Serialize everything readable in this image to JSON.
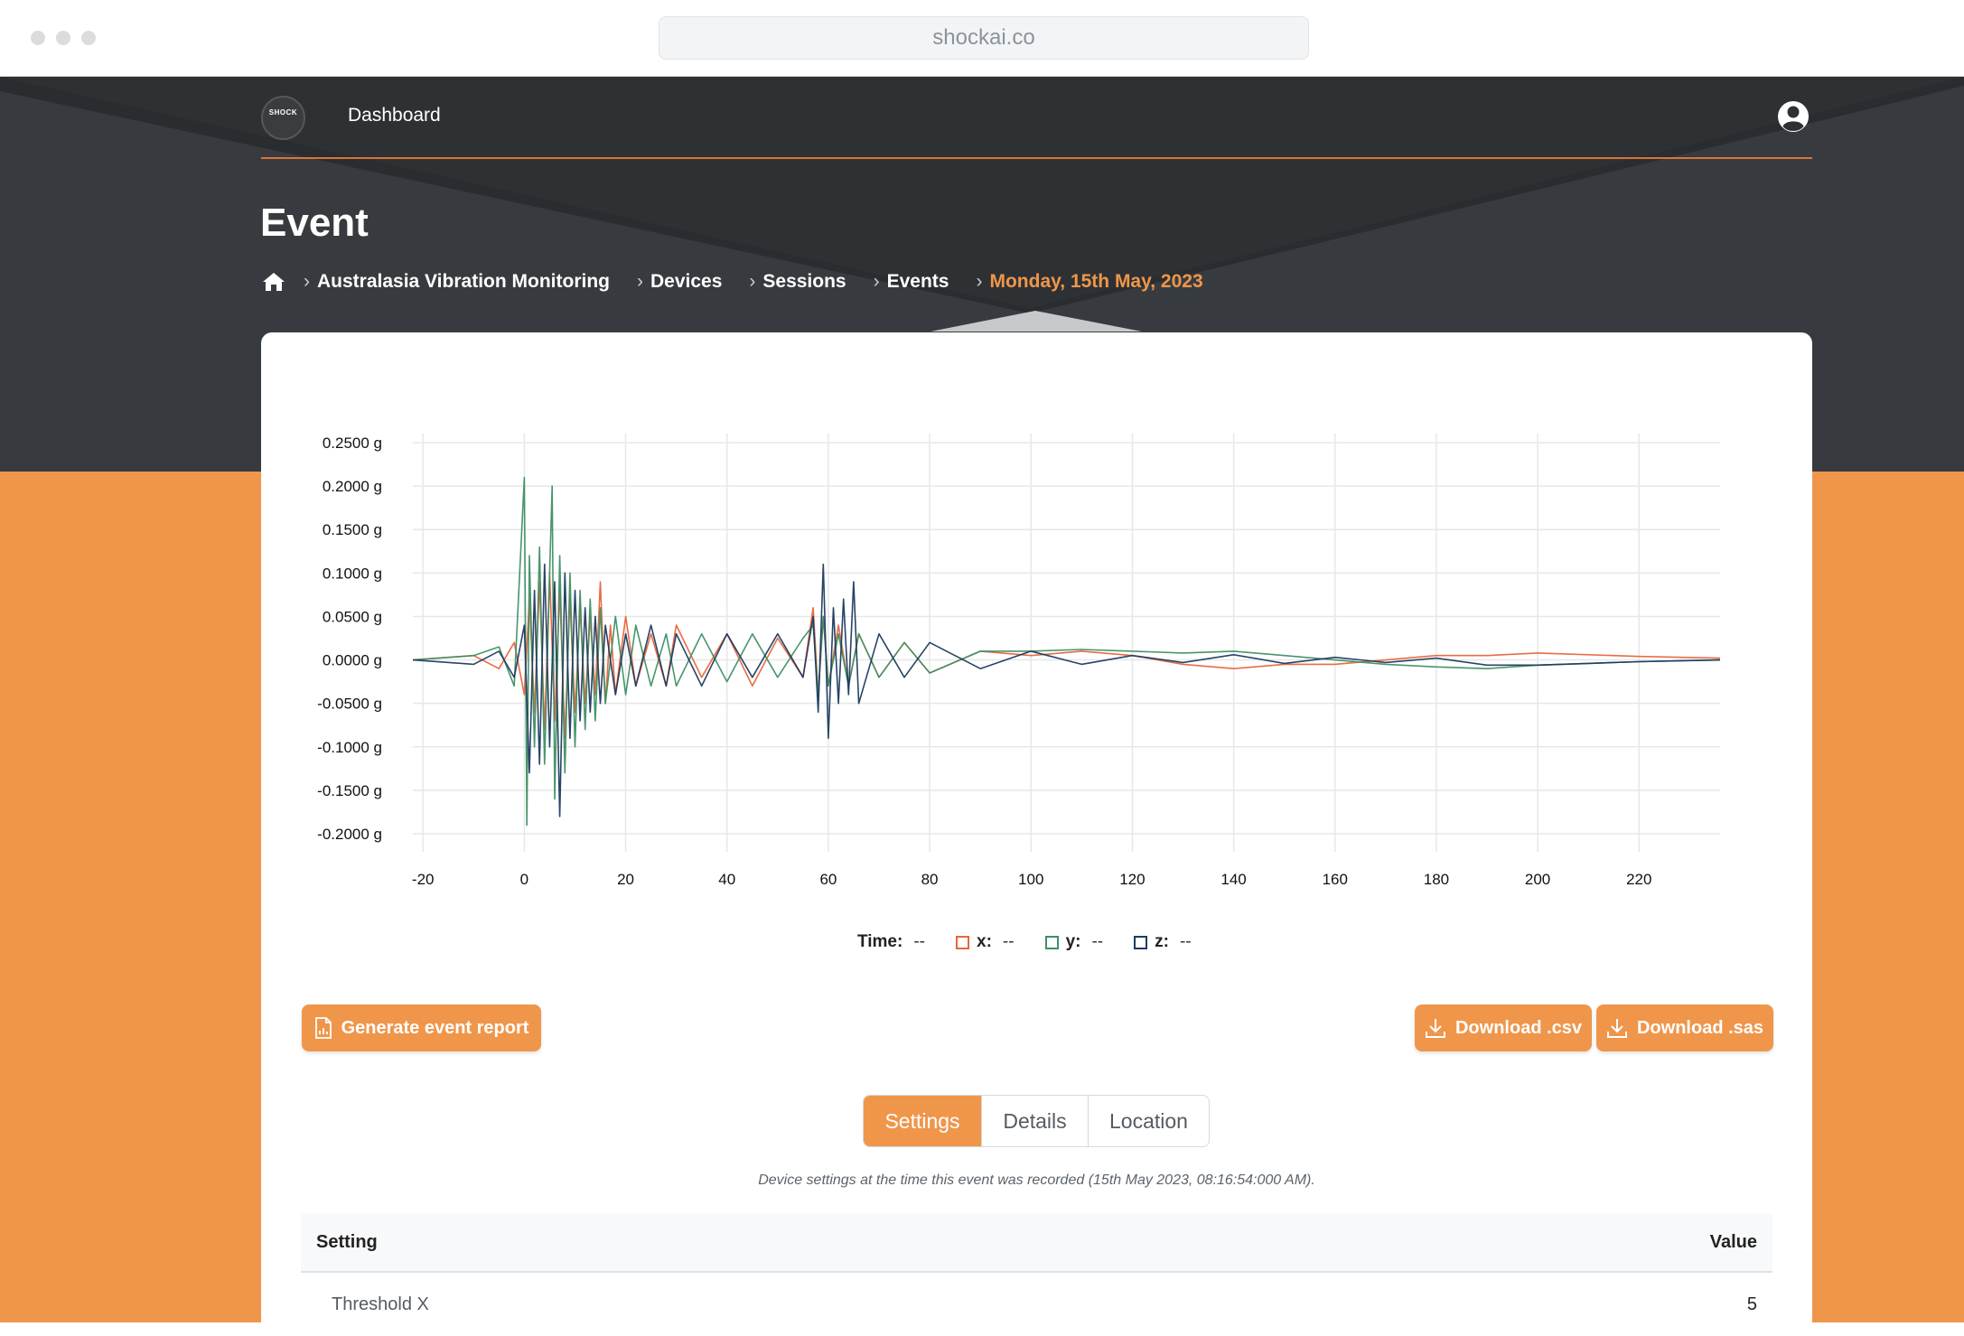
{
  "browser": {
    "url": "shockai.co"
  },
  "header": {
    "logo_text": "SHOCK",
    "nav_label": "Dashboard"
  },
  "page": {
    "title": "Event",
    "breadcrumbs": [
      "Australasia Vibration Monitoring",
      "Devices",
      "Sessions",
      "Events",
      "Monday, 15th May, 2023"
    ]
  },
  "colors": {
    "dark_bg": "#2e3134",
    "accent": "#ef964b",
    "series_x": "#e8643c",
    "series_y": "#3e8f63",
    "series_z": "#1e3a5f"
  },
  "legend": {
    "time_label": "Time:",
    "time_value": "--",
    "x_label": "x:",
    "x_value": "--",
    "y_label": "y:",
    "y_value": "--",
    "z_label": "z:",
    "z_value": "--"
  },
  "actions": {
    "report_label": "Generate event report",
    "csv_label": "Download .csv",
    "sas_label": "Download .sas"
  },
  "tabs": [
    {
      "label": "Settings",
      "active": true
    },
    {
      "label": "Details",
      "active": false
    },
    {
      "label": "Location",
      "active": false
    }
  ],
  "settings": {
    "caption": "Device settings at the time this event was recorded (15th May 2023, 08:16:54:000 AM).",
    "col_setting": "Setting",
    "col_value": "Value",
    "rows": [
      {
        "name": "Threshold X",
        "value": "5"
      }
    ]
  },
  "chart_data": {
    "type": "line",
    "xlim": [
      -22,
      236
    ],
    "ylim": [
      -0.2,
      0.25
    ],
    "x_ticks": [
      -20,
      0,
      20,
      40,
      60,
      80,
      100,
      120,
      140,
      160,
      180,
      200,
      220
    ],
    "y_ticks": [
      0.25,
      0.2,
      0.15,
      0.1,
      0.05,
      0,
      -0.05,
      -0.1,
      -0.15,
      -0.2
    ],
    "y_tick_labels": [
      "0.2500 g",
      "0.2000 g",
      "0.1500 g",
      "0.1000 g",
      "0.0500 g",
      "0.0000 g",
      "-0.0500 g",
      "-0.1000 g",
      "-0.1500 g",
      "-0.2000 g"
    ],
    "grid": true,
    "series": [
      {
        "key": "x",
        "color": "#e8643c",
        "x": [
          -22,
          -10,
          -5,
          -2,
          0,
          1,
          2,
          3,
          4,
          5,
          6,
          7,
          8,
          9,
          10,
          11,
          12,
          13,
          14,
          15,
          16,
          17,
          18,
          20,
          22,
          25,
          28,
          30,
          35,
          40,
          45,
          50,
          55,
          57,
          58,
          59,
          60,
          62,
          64,
          66,
          70,
          75,
          80,
          90,
          100,
          110,
          120,
          130,
          140,
          150,
          160,
          170,
          180,
          190,
          200,
          210,
          220,
          236
        ],
        "y": [
          0,
          0.005,
          -0.01,
          0.02,
          -0.04,
          0.07,
          -0.06,
          0.09,
          -0.08,
          0.1,
          -0.07,
          0.08,
          -0.09,
          0.07,
          -0.06,
          0.06,
          -0.05,
          0.05,
          -0.04,
          0.09,
          -0.05,
          0.04,
          -0.04,
          0.05,
          -0.03,
          0.03,
          -0.03,
          0.04,
          -0.02,
          0.03,
          -0.03,
          0.025,
          -0.02,
          0.06,
          -0.04,
          0.05,
          -0.03,
          0.04,
          -0.03,
          0.03,
          -0.02,
          0.02,
          -0.015,
          0.01,
          0.005,
          0.01,
          0.005,
          -0.005,
          -0.01,
          -0.005,
          -0.005,
          0,
          0.005,
          0.005,
          0.008,
          0.006,
          0.004,
          0.002
        ]
      },
      {
        "key": "y",
        "color": "#3e8f63",
        "x": [
          -22,
          -10,
          -5,
          -2,
          0,
          0.5,
          1,
          2,
          3,
          4,
          5,
          5.5,
          6,
          7,
          8,
          9,
          10,
          11,
          12,
          13,
          14,
          15,
          16,
          18,
          20,
          22,
          25,
          28,
          30,
          35,
          40,
          45,
          50,
          55,
          57,
          58,
          59,
          60,
          62,
          64,
          66,
          70,
          75,
          80,
          90,
          100,
          110,
          120,
          130,
          140,
          150,
          160,
          170,
          180,
          190,
          200,
          210,
          220,
          236
        ],
        "y": [
          0,
          0.005,
          0.015,
          -0.03,
          0.21,
          -0.19,
          0.12,
          -0.1,
          0.13,
          -0.12,
          0.1,
          0.2,
          -0.16,
          0.12,
          -0.13,
          0.1,
          -0.1,
          0.08,
          -0.08,
          0.07,
          -0.07,
          0.06,
          -0.05,
          0.05,
          -0.04,
          0.04,
          -0.03,
          0.03,
          -0.03,
          0.03,
          -0.025,
          0.03,
          -0.02,
          0.025,
          0.04,
          -0.04,
          0.05,
          -0.03,
          0.03,
          -0.03,
          0.03,
          -0.02,
          0.02,
          -0.015,
          0.01,
          0.01,
          0.012,
          0.01,
          0.008,
          0.01,
          0.005,
          0,
          -0.005,
          -0.008,
          -0.01,
          -0.006,
          -0.004,
          -0.002,
          0
        ]
      },
      {
        "key": "z",
        "color": "#1e3a5f",
        "x": [
          -22,
          -10,
          -5,
          -2,
          0,
          1,
          2,
          3,
          4,
          5,
          6,
          7,
          8,
          9,
          10,
          11,
          12,
          13,
          14,
          15,
          16,
          18,
          20,
          22,
          25,
          28,
          30,
          35,
          40,
          45,
          50,
          55,
          57,
          58,
          59,
          60,
          61,
          62,
          63,
          64,
          65,
          66,
          70,
          75,
          80,
          90,
          100,
          110,
          120,
          130,
          140,
          150,
          160,
          170,
          180,
          190,
          200,
          210,
          220,
          236
        ],
        "y": [
          0,
          -0.005,
          0.01,
          -0.02,
          0.04,
          -0.13,
          0.08,
          -0.12,
          0.11,
          -0.1,
          0.09,
          -0.18,
          0.1,
          -0.09,
          0.08,
          -0.07,
          0.06,
          -0.06,
          0.05,
          -0.05,
          0.04,
          -0.04,
          0.03,
          -0.03,
          0.04,
          -0.03,
          0.03,
          -0.03,
          0.03,
          -0.02,
          0.03,
          -0.02,
          0.05,
          -0.06,
          0.11,
          -0.09,
          0.06,
          -0.05,
          0.07,
          -0.04,
          0.09,
          -0.05,
          0.03,
          -0.02,
          0.02,
          -0.01,
          0.01,
          -0.005,
          0.005,
          -0.003,
          0.006,
          -0.004,
          0.003,
          -0.003,
          0.002,
          -0.006,
          -0.006,
          -0.004,
          -0.002,
          0
        ]
      }
    ]
  }
}
